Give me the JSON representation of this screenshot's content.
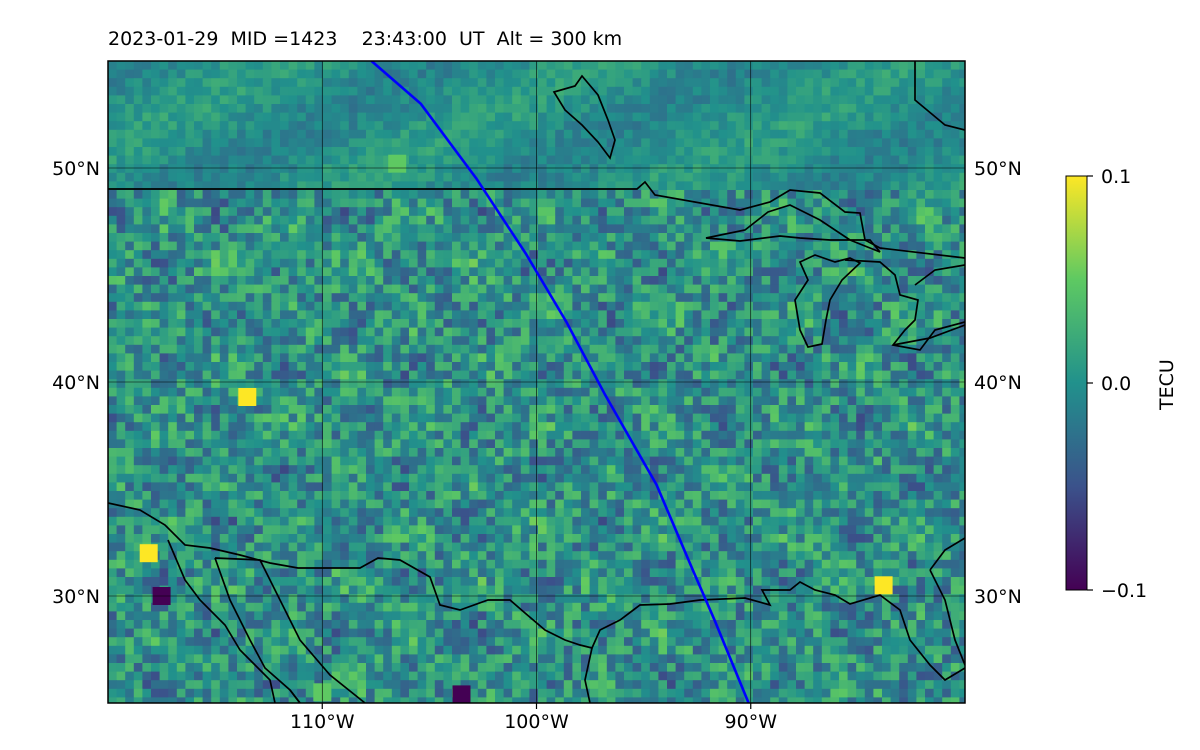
{
  "title": "2023-01-29  MID =1423    23:43:00  UT  Alt = 300 km",
  "map": {
    "lon_range": [
      -120,
      -80
    ],
    "lat_range": [
      25,
      55
    ],
    "lon_ticks": [
      {
        "value": -110,
        "label": "110°W"
      },
      {
        "value": -100,
        "label": "100°W"
      },
      {
        "value": -90,
        "label": "90°W"
      }
    ],
    "lat_ticks": [
      {
        "value": 50,
        "label": "50°N"
      },
      {
        "value": 40,
        "label": "40°N"
      },
      {
        "value": 30,
        "label": "30°N"
      }
    ],
    "grid": true,
    "track": {
      "color": "#0000ff",
      "points": [
        [
          -107.7,
          55
        ],
        [
          -105.4,
          53
        ],
        [
          -102.8,
          49.5
        ],
        [
          -100.5,
          46
        ],
        [
          -98.6,
          42.8
        ],
        [
          -96.8,
          39.4
        ],
        [
          -94.4,
          35.2
        ],
        [
          -92.7,
          31.2
        ],
        [
          -91.7,
          28.9
        ],
        [
          -90.1,
          25
        ]
      ]
    },
    "anomaly_field": {
      "description_none": "",
      "hotspots": [
        {
          "lon": -118.1,
          "lat": 32.0,
          "value": 0.1
        },
        {
          "lon": -113.5,
          "lat": 39.3,
          "value": 0.1
        },
        {
          "lon": -83.8,
          "lat": 30.5,
          "value": 0.1
        },
        {
          "lon": -106.5,
          "lat": 50.2,
          "value": 0.05
        },
        {
          "lon": -110.0,
          "lat": 25.5,
          "value": 0.05
        }
      ],
      "coldspots": [
        {
          "lon": -117.5,
          "lat": 30.0,
          "value": -0.1
        },
        {
          "lon": -103.5,
          "lat": 25.4,
          "value": -0.1
        }
      ]
    }
  },
  "colorbar": {
    "label": "TECU",
    "min": -0.1,
    "max": 0.1,
    "ticks": [
      {
        "value": 0.1,
        "label": "0.1"
      },
      {
        "value": 0.0,
        "label": "0.0"
      },
      {
        "value": -0.1,
        "label": "−0.1"
      }
    ],
    "colormap": "viridis",
    "stops": [
      "#440154",
      "#3b528b",
      "#21918c",
      "#5ec962",
      "#fde725"
    ]
  }
}
